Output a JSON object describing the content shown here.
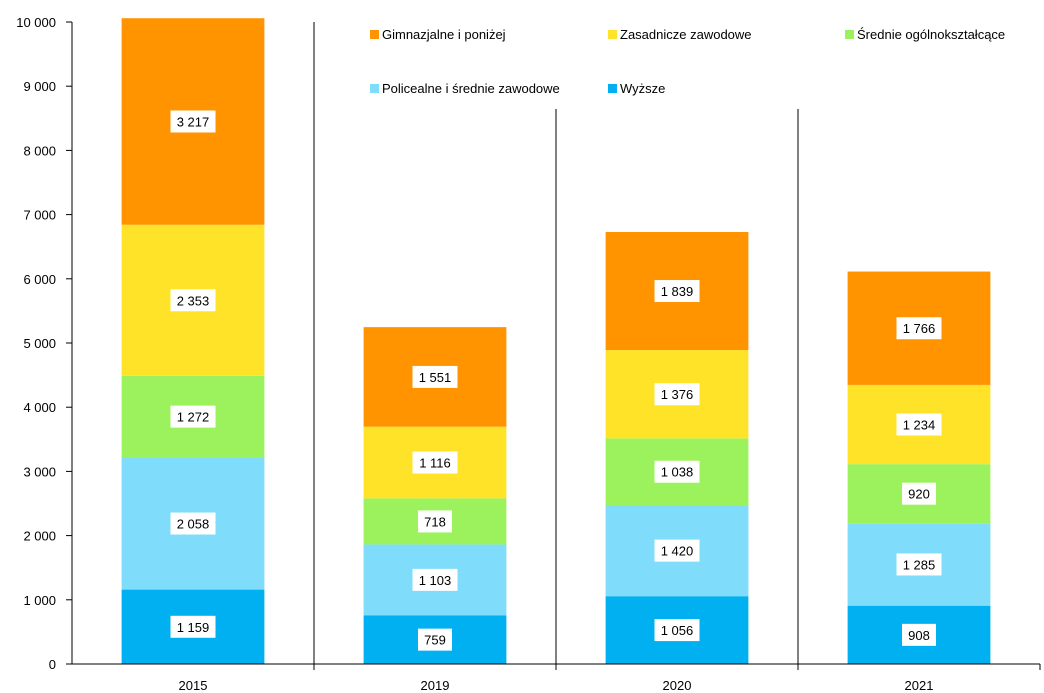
{
  "chart_data": {
    "type": "bar",
    "stacked": true,
    "categories": [
      "2015",
      "2019",
      "2020",
      "2021"
    ],
    "ylim": [
      0,
      10000
    ],
    "yticks": [
      "0",
      "1 000",
      "2 000",
      "3 000",
      "4 000",
      "5 000",
      "6 000",
      "7 000",
      "8 000",
      "9 000",
      "10 000"
    ],
    "grid": "vertical category separators",
    "legend_position": "top",
    "series": [
      {
        "name": "Wyższe",
        "color": "#00b0f0",
        "values": [
          1159,
          759,
          1056,
          908
        ],
        "labels": [
          "1 159",
          "759",
          "1 056",
          "908"
        ]
      },
      {
        "name": "Policealne i średnie zawodowe",
        "color": "#7fdcfb",
        "values": [
          2058,
          1103,
          1420,
          1285
        ],
        "labels": [
          "2 058",
          "1 103",
          "1 420",
          "1 285"
        ]
      },
      {
        "name": "Średnie ogólnokształcące",
        "color": "#9cf25c",
        "values": [
          1272,
          718,
          1038,
          920
        ],
        "labels": [
          "1 272",
          "718",
          "1 038",
          "920"
        ]
      },
      {
        "name": "Zasadnicze zawodowe",
        "color": "#ffe329",
        "values": [
          2353,
          1116,
          1376,
          1234
        ],
        "labels": [
          "2 353",
          "1 116",
          "1 376",
          "1 234"
        ]
      },
      {
        "name": "Gimnazjalne i poniżej",
        "color": "#ff9400",
        "values": [
          3217,
          1551,
          1839,
          1766
        ],
        "labels": [
          "3 217",
          "1 551",
          "1 839",
          "1 766"
        ]
      }
    ],
    "legend_order": [
      "Gimnazjalne i poniżej",
      "Zasadnicze zawodowe",
      "Średnie ogólnokształcące",
      "Policealne i średnie zawodowe",
      "Wyższe"
    ]
  }
}
